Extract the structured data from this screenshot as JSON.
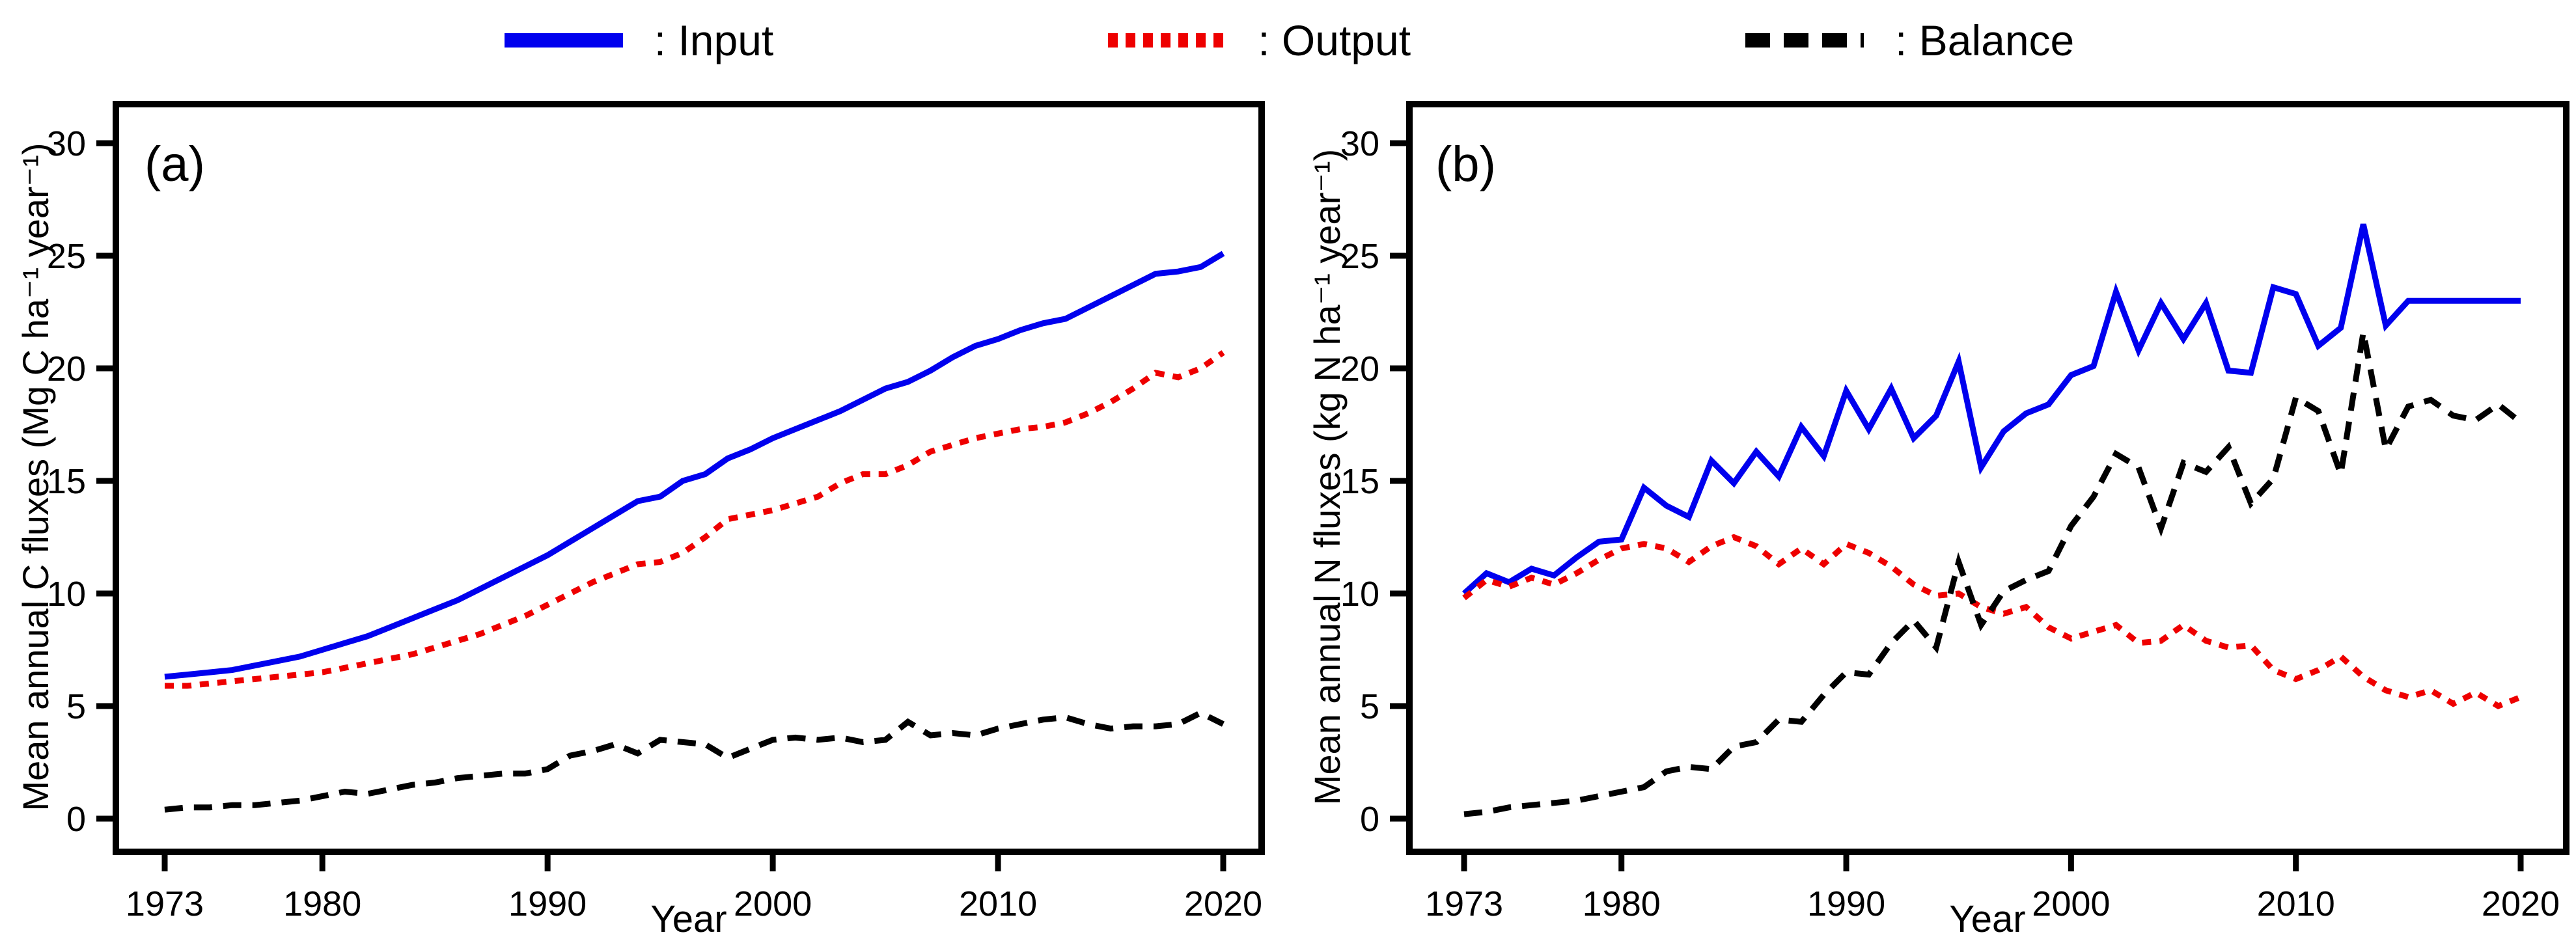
{
  "legend": {
    "items": [
      {
        "label": ": Input",
        "series": "Input",
        "color": "#0000ee",
        "line_style": "solid"
      },
      {
        "label": ": Output",
        "series": "Output",
        "color": "#ee0000",
        "line_style": "dotted"
      },
      {
        "label": ": Balance",
        "series": "Balance",
        "color": "#000000",
        "line_style": "dashed"
      }
    ]
  },
  "chart_data": [
    {
      "id": "a",
      "type": "line",
      "panel_label": "(a)",
      "xlabel": "Year",
      "ylabel": "Mean annual C fluxes (Mg C ha⁻¹ year⁻¹)",
      "x_ticks": [
        1973,
        1980,
        1990,
        2000,
        2010,
        2020
      ],
      "y_ticks": [
        0,
        5,
        10,
        15,
        20,
        25,
        30
      ],
      "xlim": [
        1970.8,
        2021.7
      ],
      "ylim": [
        -1.5,
        31.8
      ],
      "grid": false,
      "years": [
        1973,
        1974,
        1975,
        1976,
        1977,
        1978,
        1979,
        1980,
        1981,
        1982,
        1983,
        1984,
        1985,
        1986,
        1987,
        1988,
        1989,
        1990,
        1991,
        1992,
        1993,
        1994,
        1995,
        1996,
        1997,
        1998,
        1999,
        2000,
        2001,
        2002,
        2003,
        2004,
        2005,
        2006,
        2007,
        2008,
        2009,
        2010,
        2011,
        2012,
        2013,
        2014,
        2015,
        2016,
        2017,
        2018,
        2019,
        2020
      ],
      "series": [
        {
          "name": "Input",
          "color": "#0000ee",
          "line_style": "solid",
          "values": [
            6.3,
            6.4,
            6.5,
            6.6,
            6.8,
            7.0,
            7.2,
            7.5,
            7.8,
            8.1,
            8.5,
            8.9,
            9.3,
            9.7,
            10.2,
            10.7,
            11.2,
            11.7,
            12.3,
            12.9,
            13.5,
            14.1,
            14.3,
            15.0,
            15.3,
            16.0,
            16.4,
            16.9,
            17.3,
            17.7,
            18.1,
            18.6,
            19.1,
            19.4,
            19.9,
            20.5,
            21.0,
            21.3,
            21.7,
            22.0,
            22.2,
            22.7,
            23.2,
            23.7,
            24.2,
            24.3,
            24.5,
            25.1
          ]
        },
        {
          "name": "Output",
          "color": "#ee0000",
          "line_style": "dotted",
          "values": [
            5.9,
            5.9,
            6.0,
            6.1,
            6.2,
            6.3,
            6.4,
            6.5,
            6.7,
            6.9,
            7.1,
            7.3,
            7.6,
            7.9,
            8.2,
            8.6,
            9.0,
            9.5,
            10.0,
            10.5,
            10.9,
            11.3,
            11.4,
            11.8,
            12.5,
            13.3,
            13.5,
            13.7,
            14.0,
            14.3,
            14.9,
            15.3,
            15.3,
            15.7,
            16.3,
            16.6,
            16.9,
            17.1,
            17.3,
            17.4,
            17.6,
            18.0,
            18.5,
            19.1,
            19.8,
            19.6,
            20.0,
            20.7
          ]
        },
        {
          "name": "Balance",
          "color": "#000000",
          "line_style": "dashed",
          "values": [
            0.4,
            0.5,
            0.5,
            0.6,
            0.6,
            0.7,
            0.8,
            1.0,
            1.2,
            1.1,
            1.3,
            1.5,
            1.6,
            1.8,
            1.9,
            2.0,
            2.0,
            2.2,
            2.8,
            3.0,
            3.3,
            2.9,
            3.5,
            3.4,
            3.3,
            2.7,
            3.1,
            3.5,
            3.6,
            3.5,
            3.6,
            3.4,
            3.5,
            4.3,
            3.7,
            3.8,
            3.7,
            4.0,
            4.2,
            4.4,
            4.5,
            4.2,
            4.0,
            4.1,
            4.1,
            4.2,
            4.7,
            4.2
          ]
        }
      ]
    },
    {
      "id": "b",
      "type": "line",
      "panel_label": "(b)",
      "xlabel": "Year",
      "ylabel": "Mean annual N fluxes (kg N ha⁻¹ year⁻¹)",
      "x_ticks": [
        1973,
        1980,
        1990,
        2000,
        2010,
        2020
      ],
      "y_ticks": [
        0,
        5,
        10,
        15,
        20,
        25,
        30
      ],
      "xlim": [
        1970.8,
        2022.0
      ],
      "ylim": [
        -1.5,
        31.8
      ],
      "grid": false,
      "years": [
        1973,
        1974,
        1975,
        1976,
        1977,
        1978,
        1979,
        1980,
        1981,
        1982,
        1983,
        1984,
        1985,
        1986,
        1987,
        1988,
        1989,
        1990,
        1991,
        1992,
        1993,
        1994,
        1995,
        1996,
        1997,
        1998,
        1999,
        2000,
        2001,
        2002,
        2003,
        2004,
        2005,
        2006,
        2007,
        2008,
        2009,
        2010,
        2011,
        2012,
        2013,
        2014,
        2015,
        2016,
        2017,
        2018,
        2019,
        2020
      ],
      "series": [
        {
          "name": "Input",
          "color": "#0000ee",
          "line_style": "solid",
          "values": [
            10.0,
            10.9,
            10.5,
            11.1,
            10.8,
            11.6,
            12.3,
            12.4,
            14.7,
            13.9,
            13.4,
            15.9,
            14.9,
            16.3,
            15.2,
            17.4,
            16.1,
            19.0,
            17.3,
            19.1,
            16.9,
            17.9,
            20.3,
            15.6,
            17.2,
            18.0,
            18.4,
            19.7,
            20.1,
            23.4,
            20.8,
            22.9,
            21.3,
            22.9,
            19.9,
            19.8,
            23.6,
            23.3,
            21.0,
            21.8,
            26.4,
            21.9,
            23.0,
            23.0,
            23.0,
            23.0,
            23.0,
            23.0
          ]
        },
        {
          "name": "Output",
          "color": "#ee0000",
          "line_style": "dotted",
          "values": [
            9.8,
            10.6,
            10.3,
            10.7,
            10.4,
            10.9,
            11.5,
            12.0,
            12.2,
            12.0,
            11.4,
            12.1,
            12.5,
            12.1,
            11.3,
            12.0,
            11.3,
            12.2,
            11.8,
            11.2,
            10.4,
            9.9,
            10.0,
            9.4,
            9.1,
            9.4,
            8.5,
            8.0,
            8.3,
            8.6,
            7.8,
            7.9,
            8.6,
            7.9,
            7.6,
            7.7,
            6.6,
            6.2,
            6.6,
            7.2,
            6.3,
            5.7,
            5.4,
            5.7,
            5.1,
            5.6,
            5.0,
            5.4
          ]
        },
        {
          "name": "Balance",
          "color": "#000000",
          "line_style": "dashed",
          "values": [
            0.2,
            0.3,
            0.5,
            0.6,
            0.7,
            0.8,
            1.0,
            1.2,
            1.4,
            2.1,
            2.3,
            2.2,
            3.2,
            3.4,
            4.4,
            4.3,
            5.5,
            6.5,
            6.4,
            7.8,
            8.8,
            7.6,
            11.4,
            8.6,
            10.1,
            10.6,
            11.0,
            13.0,
            14.3,
            16.2,
            15.6,
            12.9,
            15.8,
            15.4,
            16.5,
            14.0,
            15.1,
            18.7,
            18.1,
            15.3,
            21.6,
            16.4,
            18.3,
            18.6,
            17.9,
            17.7,
            18.4,
            17.6
          ]
        }
      ]
    }
  ]
}
